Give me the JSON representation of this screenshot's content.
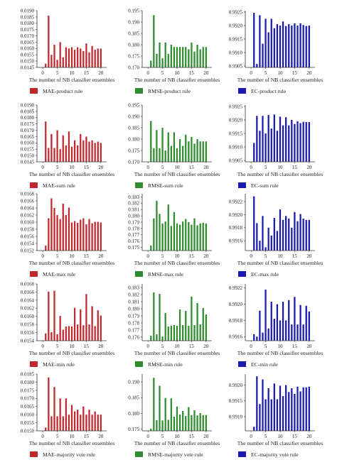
{
  "xlabel": "The number of NB classifier ensembles",
  "colors": {
    "MAE": "#c0282d",
    "RMSE": "#2e8b2e",
    "EC": "#1a1ab0"
  },
  "chart_data": [
    {
      "type": "bar",
      "metric": "MAE",
      "legend": "MAE-product rule",
      "ylim": [
        0.0145,
        0.019
      ],
      "yticks": [
        "0.0190",
        "0.0185",
        "0.0180",
        "0.0175",
        "0.0170",
        "0.0165",
        "0.0160",
        "0.0155",
        "0.0150",
        "0.0145"
      ],
      "xticks": [
        "0",
        "5",
        "10",
        "15",
        "20"
      ],
      "xlim": [
        -2,
        22
      ],
      "x": [
        1,
        2,
        3,
        4,
        5,
        6,
        7,
        8,
        9,
        10,
        11,
        12,
        13,
        14,
        15,
        16,
        17,
        18,
        19,
        20
      ],
      "values": [
        0.0148,
        0.0186,
        0.0155,
        0.0163,
        0.0151,
        0.0165,
        0.0153,
        0.0161,
        0.016,
        0.0161,
        0.0159,
        0.0161,
        0.016,
        0.0158,
        0.0164,
        0.0157,
        0.0162,
        0.0159,
        0.016,
        0.016
      ]
    },
    {
      "type": "bar",
      "metric": "RMSE",
      "legend": "RMSE-product rule",
      "ylim": [
        0.17,
        0.195
      ],
      "yticks": [
        "0.195",
        "0.190",
        "0.185",
        "0.180",
        "0.175",
        "0.170"
      ],
      "xticks": [
        "0",
        "5",
        "10",
        "15",
        "20"
      ],
      "xlim": [
        -2,
        22
      ],
      "x": [
        1,
        2,
        3,
        4,
        5,
        6,
        7,
        8,
        9,
        10,
        11,
        12,
        13,
        14,
        15,
        16,
        17,
        18,
        19,
        20
      ],
      "values": [
        0.173,
        0.193,
        0.176,
        0.181,
        0.174,
        0.181,
        0.176,
        0.18,
        0.179,
        0.179,
        0.179,
        0.179,
        0.179,
        0.178,
        0.181,
        0.177,
        0.18,
        0.178,
        0.179,
        0.179
      ]
    },
    {
      "type": "bar",
      "metric": "EC",
      "legend": "EC-product rule",
      "ylim": [
        0.99045,
        0.99255
      ],
      "yticks": [
        "0.9925",
        "0.9920",
        "0.9915",
        "0.9910",
        "0.9905"
      ],
      "xticks": [
        "0",
        "5",
        "10",
        "15",
        "20"
      ],
      "xlim": [
        -2,
        22
      ],
      "x": [
        1,
        2,
        3,
        4,
        5,
        6,
        7,
        8,
        9,
        10,
        11,
        12,
        13,
        14,
        15,
        16,
        17,
        18,
        19,
        20
      ],
      "values": [
        0.99247,
        0.99058,
        0.99238,
        0.99133,
        0.99225,
        0.99175,
        0.99225,
        0.9919,
        0.99205,
        0.992,
        0.99215,
        0.99198,
        0.99205,
        0.992,
        0.99208,
        0.992,
        0.99208,
        0.99202,
        0.99198,
        0.992
      ]
    },
    {
      "type": "bar",
      "metric": "MAE",
      "legend": "MAE-sum rule",
      "ylim": [
        0.0145,
        0.019
      ],
      "yticks": [
        "0.0190",
        "0.0185",
        "0.0180",
        "0.0175",
        "0.0170",
        "0.0165",
        "0.0160",
        "0.0155",
        "0.0150",
        "0.0145"
      ],
      "xticks": [
        "0",
        "5",
        "10",
        "15",
        "20"
      ],
      "xlim": [
        -2,
        22
      ],
      "x": [
        1,
        2,
        3,
        4,
        5,
        6,
        7,
        8,
        9,
        10,
        11,
        12,
        13,
        14,
        15,
        16,
        17,
        18,
        19,
        20
      ],
      "values": [
        0.0177,
        0.0156,
        0.0167,
        0.0156,
        0.017,
        0.0155,
        0.0166,
        0.0158,
        0.0169,
        0.0157,
        0.0162,
        0.0158,
        0.0167,
        0.0162,
        0.0165,
        0.0161,
        0.0162,
        0.016,
        0.0161,
        0.016
      ]
    },
    {
      "type": "bar",
      "metric": "RMSE",
      "legend": "RMSE-sum rule",
      "ylim": [
        0.17,
        0.195
      ],
      "yticks": [
        "0.195",
        "0.190",
        "0.185",
        "0.180",
        "0.175",
        "0.170"
      ],
      "xticks": [
        "0",
        "5",
        "10",
        "15",
        "20"
      ],
      "xlim": [
        -2,
        22
      ],
      "x": [
        1,
        2,
        3,
        4,
        5,
        6,
        7,
        8,
        9,
        10,
        11,
        12,
        13,
        14,
        15,
        16,
        17,
        18,
        19,
        20
      ],
      "values": [
        0.188,
        0.176,
        0.184,
        0.176,
        0.185,
        0.175,
        0.183,
        0.177,
        0.183,
        0.176,
        0.18,
        0.177,
        0.182,
        0.179,
        0.181,
        0.178,
        0.18,
        0.179,
        0.179,
        0.179
      ]
    },
    {
      "type": "bar",
      "metric": "EC",
      "legend": "EC-sum rule",
      "ylim": [
        0.99045,
        0.99255
      ],
      "yticks": [
        "0.9925",
        "0.9920",
        "0.9915",
        "0.9910",
        "0.9905"
      ],
      "xticks": [
        "0",
        "5",
        "10",
        "15",
        "20"
      ],
      "xlim": [
        -2,
        22
      ],
      "x": [
        1,
        2,
        3,
        4,
        5,
        6,
        7,
        8,
        9,
        10,
        11,
        12,
        13,
        14,
        15,
        16,
        17,
        18,
        19,
        20
      ],
      "values": [
        0.99115,
        0.99215,
        0.9916,
        0.99215,
        0.9915,
        0.99218,
        0.99168,
        0.9922,
        0.9916,
        0.99212,
        0.9918,
        0.9921,
        0.9918,
        0.992,
        0.99185,
        0.99195,
        0.99188,
        0.99193,
        0.99192,
        0.99192
      ]
    },
    {
      "type": "bar",
      "metric": "MAE",
      "legend": "MAE-max rule",
      "ylim": [
        0.0152,
        0.0168
      ],
      "yticks": [
        "0.0168",
        "0.0166",
        "0.0164",
        "0.0162",
        "0.0160",
        "0.0158",
        "0.0156",
        "0.0154",
        "0.0152"
      ],
      "xticks": [
        "0",
        "5",
        "10",
        "15",
        "20"
      ],
      "xlim": [
        -2,
        22
      ],
      "x": [
        1,
        2,
        3,
        4,
        5,
        6,
        7,
        8,
        9,
        10,
        11,
        12,
        13,
        14,
        15,
        16,
        17,
        18,
        19,
        20
      ],
      "values": [
        0.01534,
        0.01611,
        0.01667,
        0.0164,
        0.0162,
        0.01609,
        0.01652,
        0.0162,
        0.01641,
        0.01599,
        0.01603,
        0.01598,
        0.01607,
        0.01611,
        0.01594,
        0.01609,
        0.01597,
        0.01601,
        0.01601,
        0.01599
      ]
    },
    {
      "type": "bar",
      "metric": "RMSE",
      "legend": "RMSE-max rule",
      "ylim": [
        0.1745,
        0.1835
      ],
      "yticks": [
        "0.183",
        "0.182",
        "0.181",
        "0.180",
        "0.179",
        "0.178",
        "0.177",
        "0.176",
        "0.175"
      ],
      "xticks": [
        "0",
        "5",
        "10",
        "15",
        "20"
      ],
      "xlim": [
        -2,
        22
      ],
      "x": [
        1,
        2,
        3,
        4,
        5,
        6,
        7,
        8,
        9,
        10,
        11,
        12,
        13,
        14,
        15,
        16,
        17,
        18,
        19,
        20
      ],
      "values": [
        0.1753,
        0.1796,
        0.1824,
        0.1803,
        0.1788,
        0.1791,
        0.1818,
        0.1784,
        0.1806,
        0.1788,
        0.1786,
        0.1791,
        0.1795,
        0.179,
        0.1786,
        0.1796,
        0.1785,
        0.1788,
        0.1789,
        0.1788
      ]
    },
    {
      "type": "bar",
      "metric": "EC",
      "legend": "EC-max rule",
      "ylim": [
        0.99145,
        0.99232
      ],
      "yticks": [
        "0.9922",
        "0.9920",
        "0.9918",
        "0.9916"
      ],
      "xticks": [
        "0",
        "5",
        "10",
        "15",
        "20"
      ],
      "xlim": [
        -2,
        22
      ],
      "x": [
        1,
        2,
        3,
        4,
        5,
        6,
        7,
        8,
        9,
        10,
        11,
        12,
        13,
        14,
        15,
        16,
        17,
        18,
        19,
        20
      ],
      "values": [
        0.99228,
        0.99187,
        0.9916,
        0.99198,
        0.9915,
        0.9918,
        0.99168,
        0.99195,
        0.99175,
        0.99208,
        0.99192,
        0.99198,
        0.99194,
        0.9918,
        0.99204,
        0.9919,
        0.99201,
        0.99194,
        0.99192,
        0.99192
      ]
    },
    {
      "type": "bar",
      "metric": "MAE",
      "legend": "MAE-min rule",
      "ylim": [
        0.0154,
        0.0168
      ],
      "yticks": [
        "0.0168",
        "0.0166",
        "0.0164",
        "0.0162",
        "0.0160",
        "0.0158",
        "0.0156",
        "0.0154"
      ],
      "xticks": [
        "0",
        "5",
        "10",
        "15",
        "20"
      ],
      "xlim": [
        -2,
        22
      ],
      "x": [
        1,
        2,
        3,
        4,
        5,
        6,
        7,
        8,
        9,
        10,
        11,
        12,
        13,
        14,
        15,
        16,
        17,
        18,
        19,
        20
      ],
      "values": [
        0.01558,
        0.01661,
        0.01561,
        0.01663,
        0.01556,
        0.01601,
        0.01567,
        0.01575,
        0.01576,
        0.01575,
        0.01621,
        0.0158,
        0.01617,
        0.01578,
        0.01655,
        0.0158,
        0.01625,
        0.01576,
        0.01615,
        0.01602
      ]
    },
    {
      "type": "bar",
      "metric": "RMSE",
      "legend": "RMSE-min rule",
      "ylim": [
        0.1755,
        0.1835
      ],
      "yticks": [
        "0.183",
        "0.182",
        "0.181",
        "0.180",
        "0.179",
        "0.178",
        "0.177",
        "0.176"
      ],
      "xticks": [
        "0",
        "5",
        "10",
        "15",
        "20"
      ],
      "xlim": [
        -2,
        22
      ],
      "x": [
        1,
        2,
        3,
        4,
        5,
        6,
        7,
        8,
        9,
        10,
        11,
        12,
        13,
        14,
        15,
        16,
        17,
        18,
        19,
        20
      ],
      "values": [
        0.1762,
        0.1823,
        0.1764,
        0.1821,
        0.1761,
        0.1794,
        0.1775,
        0.1776,
        0.1777,
        0.1776,
        0.1799,
        0.1777,
        0.1797,
        0.1776,
        0.1817,
        0.1777,
        0.1808,
        0.1778,
        0.1801,
        0.1792
      ]
    },
    {
      "type": "bar",
      "metric": "EC",
      "legend": "EC-min rule",
      "ylim": [
        0.99155,
        0.99225
      ],
      "yticks": [
        "0.9922",
        "0.9920",
        "0.9918",
        "0.9916"
      ],
      "xticks": [
        "0",
        "5",
        "10",
        "15",
        "20"
      ],
      "xlim": [
        -2,
        22
      ],
      "x": [
        1,
        2,
        3,
        4,
        5,
        6,
        7,
        8,
        9,
        10,
        11,
        12,
        13,
        14,
        15,
        16,
        17,
        18,
        19,
        20
      ],
      "values": [
        0.99163,
        0.9916,
        0.99192,
        0.99165,
        0.99218,
        0.9917,
        0.99203,
        0.99182,
        0.992,
        0.9918,
        0.99203,
        0.9918,
        0.99205,
        0.99175,
        0.99209,
        0.99175,
        0.99199,
        0.99175,
        0.99198,
        0.99191
      ]
    },
    {
      "type": "bar",
      "metric": "MAE",
      "legend": "MAE-majority vote rule",
      "ylim": [
        0.015,
        0.0185
      ],
      "yticks": [
        "0.0185",
        "0.0180",
        "0.0175",
        "0.0170",
        "0.0165",
        "0.0160",
        "0.0155",
        "0.0150"
      ],
      "xticks": [
        "0",
        "5",
        "10",
        "15",
        "20"
      ],
      "xlim": [
        -2,
        22
      ],
      "x": [
        1,
        2,
        3,
        4,
        5,
        6,
        7,
        8,
        9,
        10,
        11,
        12,
        13,
        14,
        15,
        16,
        17,
        18,
        19,
        20
      ],
      "values": [
        0.0152,
        0.0183,
        0.0159,
        0.0177,
        0.0159,
        0.017,
        0.0159,
        0.017,
        0.016,
        0.0166,
        0.0162,
        0.0163,
        0.016,
        0.0165,
        0.016,
        0.0163,
        0.016,
        0.0162,
        0.016,
        0.016
      ]
    },
    {
      "type": "bar",
      "metric": "RMSE",
      "legend": "RMSE-majority vote rule",
      "ylim": [
        0.1745,
        0.1925
      ],
      "yticks": [
        "0.190",
        "0.185",
        "0.180",
        "0.175"
      ],
      "xticks": [
        "0",
        "5",
        "10",
        "15",
        "20"
      ],
      "xlim": [
        -2,
        22
      ],
      "x": [
        1,
        2,
        3,
        4,
        5,
        6,
        7,
        8,
        9,
        10,
        11,
        12,
        13,
        14,
        15,
        16,
        17,
        18,
        19,
        20
      ],
      "values": [
        0.1752,
        0.1913,
        0.1779,
        0.1888,
        0.1778,
        0.1849,
        0.178,
        0.1848,
        0.179,
        0.1822,
        0.1797,
        0.1808,
        0.1792,
        0.182,
        0.1795,
        0.181,
        0.1794,
        0.1801,
        0.1795,
        0.1795
      ]
    },
    {
      "type": "bar",
      "metric": "EC",
      "legend": "EC-majority vote rule",
      "ylim": [
        0.99055,
        0.99235
      ],
      "yticks": [
        "0.9920",
        "0.9915",
        "0.9910"
      ],
      "xticks": [
        "0",
        "5",
        "10",
        "15",
        "20"
      ],
      "xlim": [
        -2,
        22
      ],
      "x": [
        1,
        2,
        3,
        4,
        5,
        6,
        7,
        8,
        9,
        10,
        11,
        12,
        13,
        14,
        15,
        16,
        17,
        18,
        19,
        20
      ],
      "values": [
        0.99068,
        0.99228,
        0.9914,
        0.99218,
        0.99155,
        0.9919,
        0.99155,
        0.99205,
        0.99155,
        0.99198,
        0.99165,
        0.992,
        0.99178,
        0.9919,
        0.99172,
        0.99195,
        0.9918,
        0.99193,
        0.99193,
        0.99195
      ]
    }
  ]
}
